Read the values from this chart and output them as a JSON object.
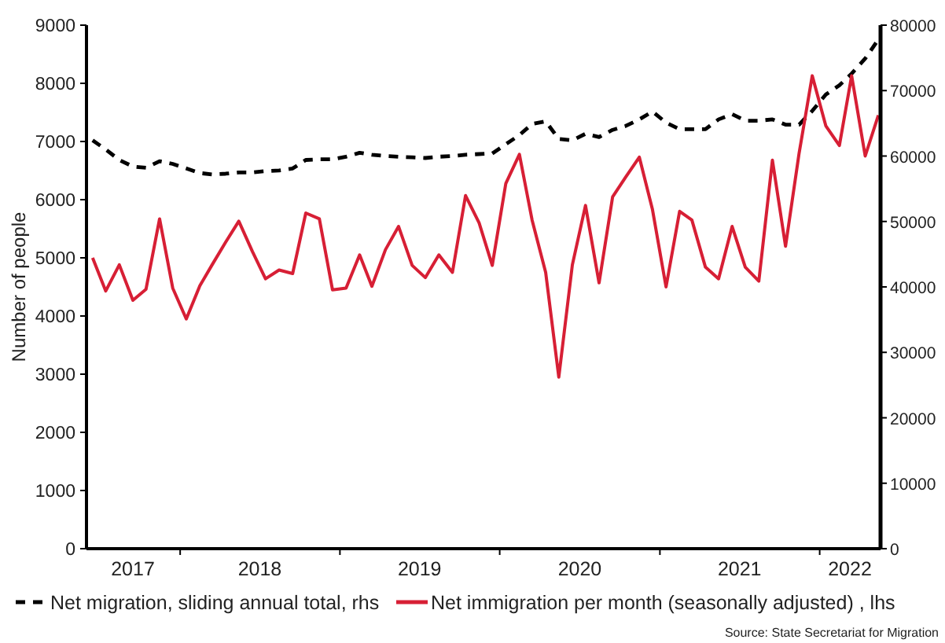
{
  "chart_data": {
    "type": "line",
    "ylabel": "Number of people",
    "legend": "bottom",
    "x": [
      "2017-06-15",
      "2017-07-15",
      "2017-08-15",
      "2017-09-15",
      "2017-10-15",
      "2017-11-15",
      "2017-12-15",
      "2018-01-15",
      "2018-02-15",
      "2018-03-15",
      "2018-04-15",
      "2018-05-15",
      "2018-06-15",
      "2018-07-15",
      "2018-08-15",
      "2018-09-15",
      "2018-10-15",
      "2018-11-15",
      "2018-12-15",
      "2019-01-15",
      "2019-02-15",
      "2019-03-15",
      "2019-04-15",
      "2019-05-15",
      "2019-06-15",
      "2019-07-15",
      "2019-08-15",
      "2019-09-15",
      "2019-10-15",
      "2019-11-15",
      "2019-12-15",
      "2020-01-15",
      "2020-02-15",
      "2020-03-15",
      "2020-04-15",
      "2020-05-15",
      "2020-06-15",
      "2020-07-15",
      "2020-08-15",
      "2020-09-15",
      "2020-10-15",
      "2020-11-15",
      "2020-12-15",
      "2021-01-15",
      "2021-02-15",
      "2021-03-15",
      "2021-04-15",
      "2021-05-15",
      "2021-06-15",
      "2021-07-15",
      "2021-08-15",
      "2021-09-15",
      "2021-10-15",
      "2021-11-15",
      "2021-12-15",
      "2022-01-15",
      "2022-02-15",
      "2022-03-15",
      "2022-04-15",
      "2022-05-15"
    ],
    "xlim": [
      "2017-06-01",
      "2022-05-20"
    ],
    "xticks": [
      {
        "value": "2017-09-15",
        "label": "2017"
      },
      {
        "value": "2018-01-01",
        "label": null
      },
      {
        "value": "2018-07-02",
        "label": "2018"
      },
      {
        "value": "2019-01-01",
        "label": null
      },
      {
        "value": "2019-07-02",
        "label": "2019"
      },
      {
        "value": "2020-01-01",
        "label": null
      },
      {
        "value": "2020-07-02",
        "label": "2020"
      },
      {
        "value": "2021-01-01",
        "label": null
      },
      {
        "value": "2021-07-02",
        "label": "2021"
      },
      {
        "value": "2022-01-01",
        "label": null
      },
      {
        "value": "2022-03-11",
        "label": "2022"
      }
    ],
    "ylim": [
      0,
      9000
    ],
    "yticks": [
      0,
      1000,
      2000,
      3000,
      4000,
      5000,
      6000,
      7000,
      8000,
      9000
    ],
    "y2lim": [
      0,
      80000
    ],
    "y2ticks": [
      0,
      10000,
      20000,
      30000,
      40000,
      50000,
      60000,
      70000,
      80000
    ],
    "series": [
      {
        "name": "Net migration, sliding annual total, rhs",
        "color": "#000000",
        "axis": "y2",
        "line_style": "dashed",
        "values": [
          62400,
          61000,
          59400,
          58400,
          58200,
          59200,
          58800,
          58100,
          57400,
          57200,
          57300,
          57500,
          57500,
          57700,
          57800,
          58100,
          59400,
          59500,
          59500,
          59900,
          60500,
          60200,
          60000,
          59900,
          59800,
          59700,
          59900,
          60000,
          60200,
          60300,
          60400,
          61800,
          63200,
          64900,
          65300,
          62600,
          62400,
          63400,
          62900,
          64000,
          64600,
          65600,
          66800,
          65100,
          64100,
          64100,
          64100,
          65600,
          66400,
          65400,
          65400,
          65600,
          64800,
          64800,
          66900,
          69400,
          70800,
          72600,
          74900,
          77800
        ]
      },
      {
        "name": "Net immigration per month (seasonally adjusted) , lhs",
        "color": "#d71f35",
        "line_style": "solid",
        "values": [
          5000,
          4430,
          4880,
          4270,
          4460,
          5670,
          4480,
          3950,
          4520,
          4880,
          5270,
          5630,
          5110,
          4640,
          4790,
          4730,
          5770,
          5670,
          4450,
          4480,
          5050,
          4510,
          5140,
          5540,
          4870,
          4660,
          5050,
          4750,
          6070,
          5600,
          4870,
          6280,
          6780,
          5650,
          4750,
          2950,
          4880,
          5900,
          4570,
          6050,
          6390,
          6730,
          5830,
          4500,
          5800,
          5650,
          4840,
          4640,
          5540,
          4840,
          4600,
          6680,
          5200,
          6800,
          8130,
          7270,
          6930,
          8130,
          6750,
          7450
        ]
      }
    ],
    "annotations": [
      "Source: State Secretariat for Migration"
    ]
  }
}
